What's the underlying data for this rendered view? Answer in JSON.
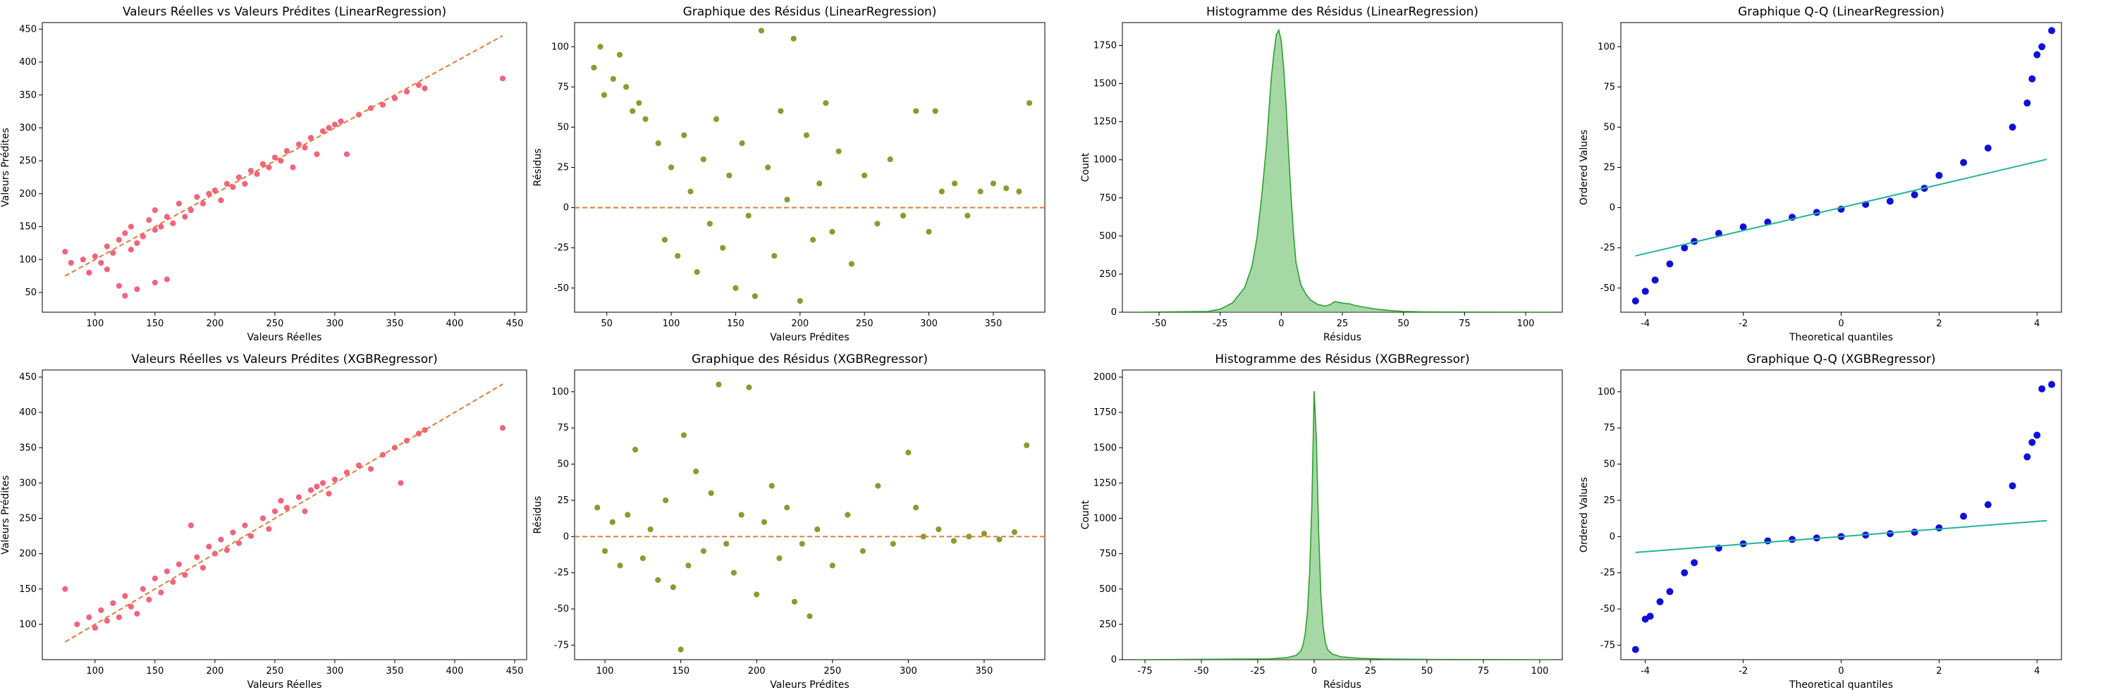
{
  "chart_data": [
    {
      "type": "scatter",
      "title": "Valeurs Réelles vs Valeurs Prédites (LinearRegression)",
      "xlabel": "Valeurs Réelles",
      "ylabel": "Valeurs Prédites",
      "xlim": [
        56,
        460
      ],
      "ylim": [
        20,
        460
      ],
      "xticks": [
        100,
        150,
        200,
        250,
        300,
        350,
        400,
        450
      ],
      "yticks": [
        50,
        100,
        150,
        200,
        250,
        300,
        350,
        400,
        450
      ],
      "points": [
        [
          75,
          112
        ],
        [
          80,
          95
        ],
        [
          90,
          100
        ],
        [
          95,
          80
        ],
        [
          100,
          105
        ],
        [
          105,
          95
        ],
        [
          110,
          85
        ],
        [
          110,
          120
        ],
        [
          115,
          110
        ],
        [
          120,
          60
        ],
        [
          120,
          130
        ],
        [
          125,
          45
        ],
        [
          125,
          140
        ],
        [
          130,
          115
        ],
        [
          130,
          150
        ],
        [
          135,
          55
        ],
        [
          135,
          125
        ],
        [
          140,
          135
        ],
        [
          145,
          160
        ],
        [
          150,
          65
        ],
        [
          150,
          145
        ],
        [
          150,
          175
        ],
        [
          155,
          150
        ],
        [
          160,
          70
        ],
        [
          160,
          165
        ],
        [
          165,
          155
        ],
        [
          170,
          185
        ],
        [
          175,
          165
        ],
        [
          180,
          175
        ],
        [
          185,
          195
        ],
        [
          190,
          185
        ],
        [
          195,
          200
        ],
        [
          200,
          205
        ],
        [
          205,
          190
        ],
        [
          210,
          215
        ],
        [
          215,
          210
        ],
        [
          220,
          225
        ],
        [
          225,
          215
        ],
        [
          230,
          235
        ],
        [
          235,
          230
        ],
        [
          240,
          245
        ],
        [
          245,
          240
        ],
        [
          250,
          255
        ],
        [
          255,
          250
        ],
        [
          260,
          265
        ],
        [
          265,
          240
        ],
        [
          270,
          275
        ],
        [
          275,
          270
        ],
        [
          280,
          285
        ],
        [
          285,
          260
        ],
        [
          290,
          295
        ],
        [
          295,
          300
        ],
        [
          300,
          305
        ],
        [
          305,
          310
        ],
        [
          310,
          260
        ],
        [
          320,
          320
        ],
        [
          330,
          330
        ],
        [
          340,
          335
        ],
        [
          350,
          345
        ],
        [
          360,
          355
        ],
        [
          370,
          365
        ],
        [
          375,
          360
        ],
        [
          440,
          375
        ]
      ],
      "reference_line": [
        [
          75,
          75
        ],
        [
          440,
          440
        ]
      ]
    },
    {
      "type": "scatter",
      "title": "Graphique des Résidus (LinearRegression)",
      "xlabel": "Valeurs Prédites",
      "ylabel": "Résidus",
      "xlim": [
        25,
        390
      ],
      "ylim": [
        -65,
        115
      ],
      "xticks": [
        50,
        100,
        150,
        200,
        250,
        300,
        350
      ],
      "yticks": [
        -50,
        -25,
        0,
        25,
        50,
        75,
        100
      ],
      "points": [
        [
          40,
          87
        ],
        [
          45,
          100
        ],
        [
          48,
          70
        ],
        [
          55,
          80
        ],
        [
          60,
          95
        ],
        [
          65,
          75
        ],
        [
          70,
          60
        ],
        [
          75,
          65
        ],
        [
          80,
          55
        ],
        [
          90,
          40
        ],
        [
          95,
          -20
        ],
        [
          100,
          25
        ],
        [
          105,
          -30
        ],
        [
          110,
          45
        ],
        [
          115,
          10
        ],
        [
          120,
          -40
        ],
        [
          125,
          30
        ],
        [
          130,
          -10
        ],
        [
          135,
          55
        ],
        [
          140,
          -25
        ],
        [
          145,
          20
        ],
        [
          150,
          -50
        ],
        [
          155,
          40
        ],
        [
          160,
          -5
        ],
        [
          165,
          -55
        ],
        [
          170,
          110
        ],
        [
          175,
          25
        ],
        [
          180,
          -30
        ],
        [
          185,
          60
        ],
        [
          190,
          5
        ],
        [
          195,
          105
        ],
        [
          200,
          -58
        ],
        [
          205,
          45
        ],
        [
          210,
          -20
        ],
        [
          215,
          15
        ],
        [
          220,
          65
        ],
        [
          225,
          -15
        ],
        [
          230,
          35
        ],
        [
          240,
          -35
        ],
        [
          250,
          20
        ],
        [
          260,
          -10
        ],
        [
          270,
          30
        ],
        [
          280,
          -5
        ],
        [
          290,
          60
        ],
        [
          300,
          -15
        ],
        [
          305,
          60
        ],
        [
          310,
          10
        ],
        [
          320,
          15
        ],
        [
          330,
          -5
        ],
        [
          340,
          10
        ],
        [
          350,
          15
        ],
        [
          360,
          12
        ],
        [
          370,
          10
        ],
        [
          378,
          65
        ]
      ],
      "reference_line_y": 0
    },
    {
      "type": "bar",
      "title": "Histogramme des Résidus (LinearRegression)",
      "xlabel": "Résidus",
      "ylabel": "Count",
      "xlim": [
        -65,
        115
      ],
      "ylim": [
        0,
        1900
      ],
      "xticks": [
        -50,
        -25,
        0,
        25,
        50,
        75,
        100
      ],
      "yticks": [
        0,
        250,
        500,
        750,
        1000,
        1250,
        1500,
        1750
      ],
      "x": [
        -60,
        -30,
        -25,
        -20,
        -15,
        -12,
        -10,
        -8,
        -6,
        -5,
        -4,
        -3,
        -2,
        -1,
        0,
        1,
        2,
        3,
        4,
        5,
        6,
        8,
        10,
        12,
        15,
        18,
        20,
        22,
        25,
        28,
        30,
        35,
        40,
        45,
        50,
        60,
        80,
        110
      ],
      "values": [
        0,
        5,
        20,
        60,
        160,
        300,
        480,
        760,
        1100,
        1330,
        1550,
        1700,
        1820,
        1850,
        1780,
        1600,
        1350,
        1050,
        760,
        520,
        330,
        180,
        120,
        80,
        50,
        40,
        50,
        70,
        60,
        55,
        45,
        30,
        18,
        10,
        5,
        2,
        1,
        0
      ]
    },
    {
      "type": "scatter",
      "title": "Graphique Q-Q (LinearRegression)",
      "xlabel": "Theoretical quantiles",
      "ylabel": "Ordered Values",
      "xlim": [
        -4.5,
        4.5
      ],
      "ylim": [
        -65,
        115
      ],
      "xticks": [
        -4,
        -2,
        0,
        2,
        4
      ],
      "yticks": [
        -50,
        -25,
        0,
        25,
        50,
        75,
        100
      ],
      "points": [
        [
          -4.2,
          -58
        ],
        [
          -4.0,
          -52
        ],
        [
          -3.8,
          -45
        ],
        [
          -3.5,
          -35
        ],
        [
          -3.2,
          -25
        ],
        [
          -3.0,
          -21
        ],
        [
          -2.5,
          -16
        ],
        [
          -2.0,
          -12
        ],
        [
          -1.5,
          -9
        ],
        [
          -1.0,
          -6
        ],
        [
          -0.5,
          -3
        ],
        [
          0,
          -1
        ],
        [
          0.5,
          2
        ],
        [
          1.0,
          4
        ],
        [
          1.5,
          8
        ],
        [
          1.7,
          12
        ],
        [
          2.0,
          20
        ],
        [
          2.5,
          28
        ],
        [
          3.0,
          37
        ],
        [
          3.5,
          50
        ],
        [
          3.8,
          65
        ],
        [
          3.9,
          80
        ],
        [
          4.0,
          95
        ],
        [
          4.1,
          100
        ],
        [
          4.3,
          110
        ]
      ],
      "reference_line": [
        [
          -4.2,
          -30
        ],
        [
          4.2,
          30
        ]
      ]
    },
    {
      "type": "scatter",
      "title": "Valeurs Réelles vs Valeurs Prédites (XGBRegressor)",
      "xlabel": "Valeurs Réelles",
      "ylabel": "Valeurs Prédites",
      "xlim": [
        56,
        460
      ],
      "ylim": [
        50,
        460
      ],
      "xticks": [
        100,
        150,
        200,
        250,
        300,
        350,
        400,
        450
      ],
      "yticks": [
        100,
        150,
        200,
        250,
        300,
        350,
        400,
        450
      ],
      "points": [
        [
          75,
          150
        ],
        [
          85,
          100
        ],
        [
          95,
          110
        ],
        [
          100,
          95
        ],
        [
          105,
          120
        ],
        [
          110,
          105
        ],
        [
          115,
          130
        ],
        [
          120,
          110
        ],
        [
          125,
          140
        ],
        [
          130,
          125
        ],
        [
          135,
          115
        ],
        [
          140,
          150
        ],
        [
          145,
          135
        ],
        [
          150,
          165
        ],
        [
          155,
          145
        ],
        [
          160,
          175
        ],
        [
          165,
          160
        ],
        [
          170,
          185
        ],
        [
          175,
          170
        ],
        [
          180,
          240
        ],
        [
          185,
          195
        ],
        [
          190,
          180
        ],
        [
          195,
          210
        ],
        [
          200,
          200
        ],
        [
          205,
          220
        ],
        [
          210,
          205
        ],
        [
          215,
          230
        ],
        [
          220,
          215
        ],
        [
          225,
          240
        ],
        [
          230,
          225
        ],
        [
          240,
          250
        ],
        [
          245,
          235
        ],
        [
          250,
          260
        ],
        [
          255,
          275
        ],
        [
          260,
          265
        ],
        [
          270,
          280
        ],
        [
          275,
          260
        ],
        [
          280,
          290
        ],
        [
          285,
          295
        ],
        [
          290,
          300
        ],
        [
          295,
          285
        ],
        [
          300,
          305
        ],
        [
          310,
          315
        ],
        [
          320,
          325
        ],
        [
          330,
          320
        ],
        [
          340,
          340
        ],
        [
          350,
          350
        ],
        [
          355,
          300
        ],
        [
          360,
          360
        ],
        [
          370,
          370
        ],
        [
          375,
          375
        ],
        [
          440,
          378
        ]
      ],
      "reference_line": [
        [
          75,
          75
        ],
        [
          440,
          440
        ]
      ]
    },
    {
      "type": "scatter",
      "title": "Graphique des Résidus (XGBRegressor)",
      "xlabel": "Valeurs Prédites",
      "ylabel": "Résidus",
      "xlim": [
        80,
        390
      ],
      "ylim": [
        -85,
        115
      ],
      "xticks": [
        100,
        150,
        200,
        250,
        300,
        350
      ],
      "yticks": [
        -75,
        -50,
        -25,
        0,
        25,
        50,
        75,
        100
      ],
      "points": [
        [
          95,
          20
        ],
        [
          100,
          -10
        ],
        [
          105,
          10
        ],
        [
          110,
          -20
        ],
        [
          115,
          15
        ],
        [
          120,
          60
        ],
        [
          125,
          -15
        ],
        [
          130,
          5
        ],
        [
          135,
          -30
        ],
        [
          140,
          25
        ],
        [
          145,
          -35
        ],
        [
          150,
          -78
        ],
        [
          152,
          70
        ],
        [
          155,
          -20
        ],
        [
          160,
          45
        ],
        [
          165,
          -10
        ],
        [
          170,
          30
        ],
        [
          175,
          105
        ],
        [
          180,
          -5
        ],
        [
          185,
          -25
        ],
        [
          190,
          15
        ],
        [
          195,
          103
        ],
        [
          200,
          -40
        ],
        [
          205,
          10
        ],
        [
          210,
          35
        ],
        [
          215,
          -15
        ],
        [
          220,
          20
        ],
        [
          225,
          -45
        ],
        [
          230,
          -5
        ],
        [
          235,
          -55
        ],
        [
          240,
          5
        ],
        [
          250,
          -20
        ],
        [
          260,
          15
        ],
        [
          270,
          -10
        ],
        [
          280,
          35
        ],
        [
          290,
          -5
        ],
        [
          300,
          58
        ],
        [
          305,
          20
        ],
        [
          310,
          0
        ],
        [
          320,
          5
        ],
        [
          330,
          -3
        ],
        [
          340,
          0
        ],
        [
          350,
          2
        ],
        [
          360,
          -2
        ],
        [
          370,
          3
        ],
        [
          378,
          63
        ]
      ],
      "reference_line_y": 0
    },
    {
      "type": "bar",
      "title": "Histogramme des Résidus (XGBRegressor)",
      "xlabel": "Résidus",
      "ylabel": "Count",
      "xlim": [
        -85,
        110
      ],
      "ylim": [
        0,
        2050
      ],
      "xticks": [
        -75,
        -50,
        -25,
        0,
        25,
        50,
        75,
        100
      ],
      "yticks": [
        0,
        250,
        500,
        750,
        1000,
        1250,
        1500,
        1750,
        2000
      ],
      "x": [
        -80,
        -20,
        -12,
        -8,
        -6,
        -5,
        -4,
        -3,
        -2,
        -1,
        0,
        1,
        2,
        3,
        4,
        5,
        6,
        8,
        12,
        20,
        30,
        50,
        80,
        105
      ],
      "values": [
        0,
        5,
        15,
        30,
        60,
        100,
        180,
        330,
        620,
        1100,
        1900,
        1550,
        900,
        450,
        230,
        120,
        70,
        40,
        20,
        10,
        5,
        2,
        1,
        0
      ]
    },
    {
      "type": "scatter",
      "title": "Graphique Q-Q (XGBRegressor)",
      "xlabel": "Theoretical quantiles",
      "ylabel": "Ordered Values",
      "xlim": [
        -4.5,
        4.5
      ],
      "ylim": [
        -85,
        115
      ],
      "xticks": [
        -4,
        -2,
        0,
        2,
        4
      ],
      "yticks": [
        -75,
        -50,
        -25,
        0,
        25,
        50,
        75,
        100
      ],
      "points": [
        [
          -4.2,
          -78
        ],
        [
          -4.0,
          -57
        ],
        [
          -3.9,
          -55
        ],
        [
          -3.7,
          -45
        ],
        [
          -3.5,
          -38
        ],
        [
          -3.2,
          -25
        ],
        [
          -3.0,
          -18
        ],
        [
          -2.5,
          -8
        ],
        [
          -2.0,
          -5
        ],
        [
          -1.5,
          -3
        ],
        [
          -1.0,
          -2
        ],
        [
          -0.5,
          -1
        ],
        [
          0,
          0
        ],
        [
          0.5,
          1
        ],
        [
          1.0,
          2
        ],
        [
          1.5,
          3
        ],
        [
          2.0,
          6
        ],
        [
          2.5,
          14
        ],
        [
          3.0,
          22
        ],
        [
          3.5,
          35
        ],
        [
          3.8,
          55
        ],
        [
          3.9,
          65
        ],
        [
          4.0,
          70
        ],
        [
          4.1,
          102
        ],
        [
          4.3,
          105
        ]
      ],
      "reference_line": [
        [
          -4.2,
          -11
        ],
        [
          4.2,
          11
        ]
      ]
    }
  ],
  "colors": {
    "scatter_pink": "#f2647d",
    "scatter_olive": "#8c9a2e",
    "hist_green": "#5cb85c",
    "hist_line": "#2ca02c",
    "qq_blue": "#1010d8",
    "qq_line": "#24b39b",
    "ref_orange": "#e07b39"
  }
}
